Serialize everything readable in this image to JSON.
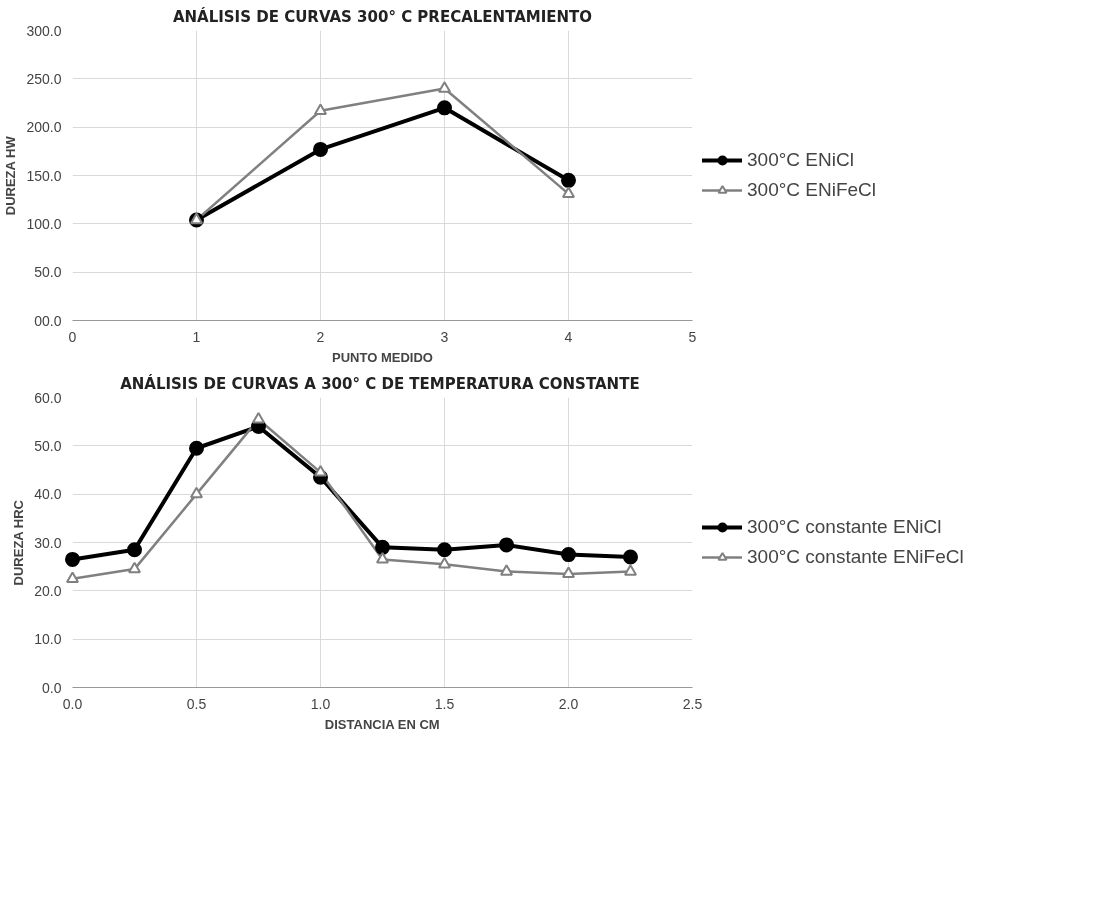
{
  "chart_data": [
    {
      "type": "line",
      "title": "ANÁLISIS DE CURVAS 300° C PRECALENTAMIENTO",
      "xlabel": "PUNTO MEDIDO",
      "ylabel": "DUREZA HW",
      "x": [
        1,
        2,
        3,
        4
      ],
      "xlim": [
        0,
        5
      ],
      "xticks": [
        0,
        1,
        2,
        3,
        4,
        5
      ],
      "ylim": [
        0,
        300
      ],
      "yticks": [
        {
          "value": 0,
          "label": "00.0"
        },
        {
          "value": 50,
          "label": "50.0"
        },
        {
          "value": 100,
          "label": "100.0"
        },
        {
          "value": 150,
          "label": "150.0"
        },
        {
          "value": 200,
          "label": "200.0"
        },
        {
          "value": 250,
          "label": "250.0"
        },
        {
          "value": 300,
          "label": "300.0"
        }
      ],
      "grid": true,
      "legend": "right",
      "line_style": "solid",
      "series": [
        {
          "name": "300°C ENiCl",
          "color": "#000000",
          "marker": "circle",
          "values": [
            104,
            177,
            220,
            145
          ]
        },
        {
          "name": "300°C ENiFeCl",
          "color": "#808080",
          "marker": "triangle",
          "values": [
            104,
            217,
            240,
            131
          ]
        }
      ]
    },
    {
      "type": "line",
      "title": "ANÁLISIS DE CURVAS A 300° C  DE TEMPERATURA CONSTANTE",
      "xlabel": "DISTANCIA EN CM",
      "ylabel": "DUREZA HRC",
      "x": [
        0,
        0.25,
        0.5,
        0.75,
        1.0,
        1.25,
        1.5,
        1.75,
        2.0,
        2.25
      ],
      "xlim": [
        0,
        2.5
      ],
      "xticks": [
        {
          "value": 0,
          "label": "0.0"
        },
        {
          "value": 0.5,
          "label": "0.5"
        },
        {
          "value": 1,
          "label": "1.0"
        },
        {
          "value": 1.5,
          "label": "1.5"
        },
        {
          "value": 2,
          "label": "2.0"
        },
        {
          "value": 2.5,
          "label": "2.5"
        }
      ],
      "ylim": [
        0,
        60
      ],
      "yticks": [
        {
          "value": 0,
          "label": "0.0"
        },
        {
          "value": 10,
          "label": "10.0"
        },
        {
          "value": 20,
          "label": "20.0"
        },
        {
          "value": 30,
          "label": "30.0"
        },
        {
          "value": 40,
          "label": "40.0"
        },
        {
          "value": 50,
          "label": "50.0"
        },
        {
          "value": 60,
          "label": "60.0"
        }
      ],
      "grid": true,
      "legend": "right",
      "line_style": "solid",
      "series": [
        {
          "name": "300°C constante ENiCl",
          "color": "#000000",
          "marker": "circle",
          "values": [
            26.5,
            28.5,
            49.5,
            54,
            43.5,
            29,
            28.5,
            29.5,
            27.5,
            27
          ]
        },
        {
          "name": "300°C constante ENiFeCl",
          "color": "#808080",
          "marker": "triangle",
          "values": [
            22.5,
            24.5,
            40,
            55.5,
            44.5,
            26.5,
            25.5,
            24,
            23.5,
            24
          ]
        }
      ]
    }
  ]
}
